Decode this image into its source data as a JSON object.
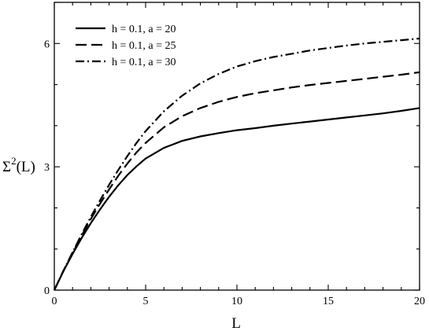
{
  "chart_data": {
    "type": "line",
    "xlabel": "L",
    "ylabel_main": "Σ",
    "ylabel_sup": "2",
    "ylabel_tail": "(L)",
    "xlim": [
      0,
      20
    ],
    "ylim": [
      0,
      7
    ],
    "xticks": [
      0,
      5,
      10,
      15,
      20
    ],
    "yticks": [
      0,
      3,
      6
    ],
    "grid": false,
    "legend_position": "top-left",
    "series": [
      {
        "name": "h = 0.1, a = 20",
        "style": "solid",
        "x": [
          0,
          0.5,
          1,
          1.5,
          2,
          2.5,
          3,
          3.5,
          4,
          4.5,
          5,
          6,
          7,
          8,
          9,
          10,
          11,
          12,
          13,
          14,
          15,
          16,
          17,
          18,
          19,
          20
        ],
        "y": [
          0,
          0.46,
          0.88,
          1.27,
          1.63,
          1.96,
          2.27,
          2.55,
          2.8,
          3.01,
          3.2,
          3.46,
          3.63,
          3.74,
          3.82,
          3.89,
          3.94,
          4.0,
          4.05,
          4.1,
          4.15,
          4.2,
          4.25,
          4.3,
          4.36,
          4.43
        ]
      },
      {
        "name": "h = 0.1, a = 25",
        "style": "dashed",
        "x": [
          0,
          0.5,
          1,
          1.5,
          2,
          2.5,
          3,
          3.5,
          4,
          4.5,
          5,
          6,
          7,
          8,
          9,
          10,
          11,
          12,
          13,
          14,
          15,
          16,
          17,
          18,
          19,
          20
        ],
        "y": [
          0,
          0.47,
          0.91,
          1.33,
          1.73,
          2.1,
          2.45,
          2.78,
          3.08,
          3.35,
          3.58,
          3.96,
          4.23,
          4.43,
          4.58,
          4.7,
          4.79,
          4.86,
          4.93,
          4.99,
          5.04,
          5.09,
          5.14,
          5.19,
          5.24,
          5.3
        ]
      },
      {
        "name": "h = 0.1, a = 30",
        "style": "dashdot",
        "x": [
          0,
          0.5,
          1,
          1.5,
          2,
          2.5,
          3,
          3.5,
          4,
          4.5,
          5,
          6,
          7,
          8,
          9,
          10,
          11,
          12,
          13,
          14,
          15,
          16,
          17,
          18,
          19,
          20
        ],
        "y": [
          0,
          0.47,
          0.92,
          1.36,
          1.78,
          2.18,
          2.56,
          2.92,
          3.26,
          3.58,
          3.87,
          4.35,
          4.73,
          5.03,
          5.26,
          5.44,
          5.57,
          5.67,
          5.75,
          5.83,
          5.89,
          5.95,
          6.0,
          6.04,
          6.08,
          6.12
        ]
      }
    ]
  }
}
